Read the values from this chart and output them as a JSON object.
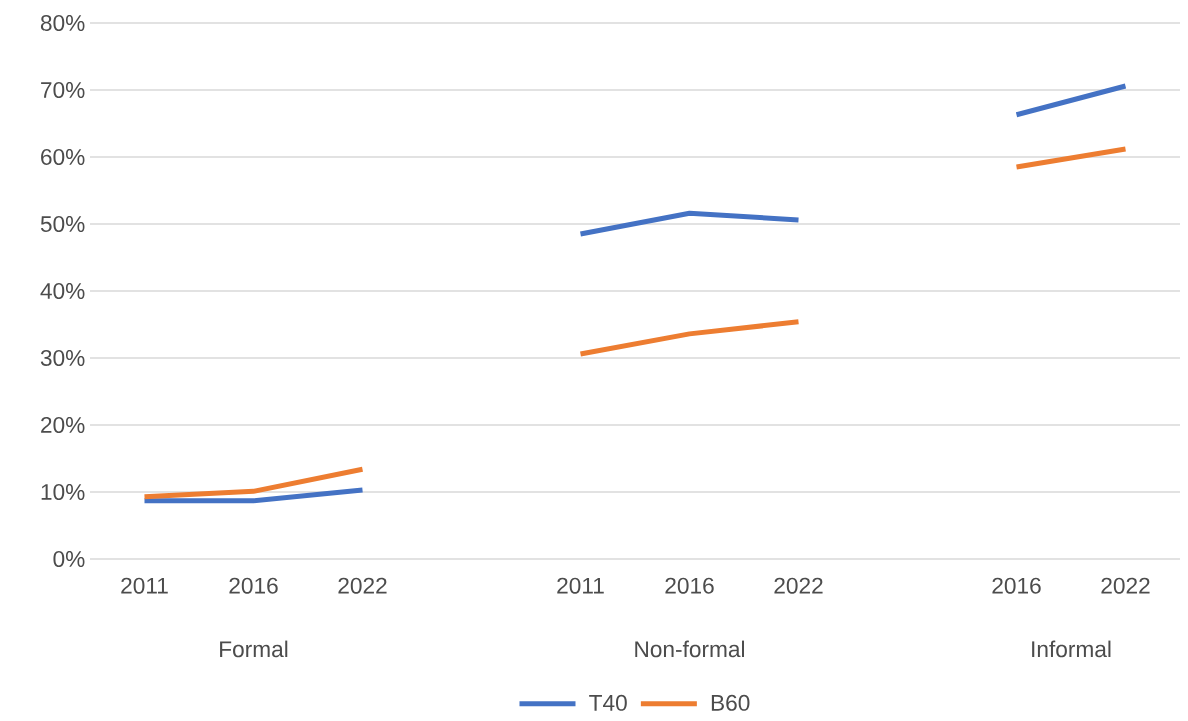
{
  "chart_data": {
    "type": "line",
    "categories": [
      "2011",
      "2016",
      "2022",
      null,
      "2011",
      "2016",
      "2022",
      null,
      "2016",
      "2022"
    ],
    "series": [
      {
        "name": "T40",
        "color": "#4472c4",
        "values": [
          8.7,
          8.7,
          10.3,
          null,
          48.5,
          51.6,
          50.6,
          null,
          66.3,
          70.6
        ]
      },
      {
        "name": "B60",
        "color": "#ed7d31",
        "values": [
          9.3,
          10.1,
          13.4,
          null,
          30.6,
          33.6,
          35.4,
          null,
          58.5,
          61.2
        ]
      }
    ],
    "annotations": [
      "Formal",
      "Non-formal",
      "Informal"
    ],
    "ylim": [
      0,
      80
    ],
    "yticks": [
      {
        "value": 0,
        "label": "0%"
      },
      {
        "value": 10,
        "label": "10%"
      },
      {
        "value": 20,
        "label": "20%"
      },
      {
        "value": 30,
        "label": "30%"
      },
      {
        "value": 40,
        "label": "40%"
      },
      {
        "value": 50,
        "label": "50%"
      },
      {
        "value": 60,
        "label": "60%"
      },
      {
        "value": 70,
        "label": "70%"
      },
      {
        "value": 80,
        "label": "80%"
      }
    ],
    "grid": "y",
    "legend": "bottom"
  }
}
